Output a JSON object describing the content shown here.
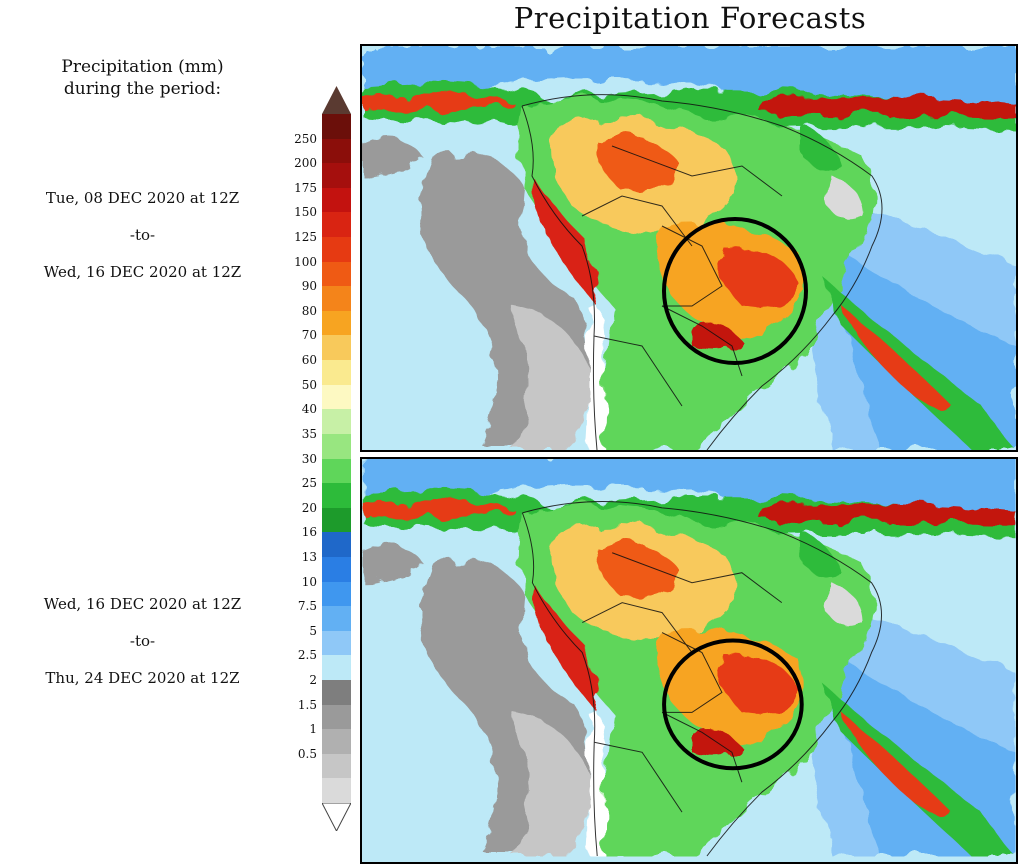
{
  "title": "Precipitation Forecasts",
  "legend": {
    "heading_line1": "Precipitation (mm)",
    "heading_line2": "during the period:",
    "ticks": [
      "250",
      "200",
      "175",
      "150",
      "125",
      "100",
      "90",
      "80",
      "70",
      "60",
      "50",
      "40",
      "35",
      "30",
      "25",
      "20",
      "16",
      "13",
      "10",
      "7.5",
      "5",
      "2.5",
      "2",
      "1.5",
      "1",
      "0.5"
    ],
    "colors": [
      "#6b0f0a",
      "#8b0e0a",
      "#a50f0d",
      "#c3120f",
      "#d92412",
      "#e63a12",
      "#ef5a14",
      "#f4841a",
      "#f7a421",
      "#f8c95b",
      "#faea8f",
      "#fdf9c2",
      "#c7f0a6",
      "#98e680",
      "#5fd65a",
      "#2dbb3a",
      "#1d9b2b",
      "#1f68c9",
      "#2a7ee4",
      "#3f97ef",
      "#62b0f3",
      "#8fc8f7",
      "#bde9f7",
      "#7e7e7e",
      "#9a9a9a",
      "#b0b0b0",
      "#c6c6c6",
      "#dadada"
    ],
    "top_arrow_color": "#5a3a31",
    "bottom_arrow_color": "#ffffff"
  },
  "periods": [
    {
      "start": "Tue, 08 DEC 2020 at 12Z",
      "sep": "-to-",
      "end": "Wed, 16 DEC 2020 at 12Z"
    },
    {
      "start": "Wed, 16 DEC 2020 at 12Z",
      "sep": "-to-",
      "end": "Thu, 24 DEC 2020 at 12Z"
    }
  ],
  "panels": [
    {
      "region": "South America",
      "highlight": "circle over central Brazil / Paraguay"
    },
    {
      "region": "South America",
      "highlight": "circle over central Brazil / Paraguay"
    }
  ]
}
